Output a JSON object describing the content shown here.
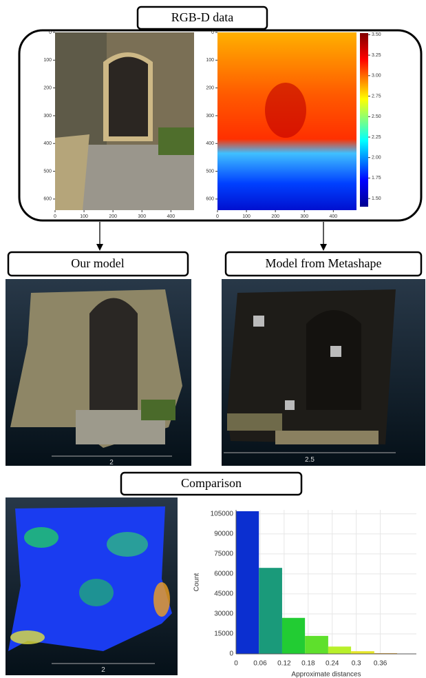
{
  "rgbd": {
    "title": "RGB-D data",
    "rgb_image": {
      "xlim": [
        0,
        480
      ],
      "ylim": [
        0,
        640
      ],
      "xticks": [
        0,
        100,
        200,
        300,
        400
      ],
      "yticks": [
        0,
        100,
        200,
        300,
        400,
        500,
        600
      ]
    },
    "depth_image": {
      "xlim": [
        0,
        480
      ],
      "ylim": [
        0,
        640
      ],
      "xticks": [
        0,
        100,
        200,
        300,
        400
      ],
      "yticks": [
        0,
        100,
        200,
        300,
        400,
        500,
        600
      ],
      "colorbar": {
        "lim": [
          1.4,
          3.52
        ],
        "ticks": [
          {
            "value": 1.5,
            "label": "1.50"
          },
          {
            "value": 1.75,
            "label": "1.75"
          },
          {
            "value": 2.0,
            "label": "2.00"
          },
          {
            "value": 2.25,
            "label": "2.25"
          },
          {
            "value": 2.5,
            "label": "2.50"
          },
          {
            "value": 2.75,
            "label": "2.75"
          },
          {
            "value": 3.0,
            "label": "3.00"
          },
          {
            "value": 3.25,
            "label": "3.25"
          },
          {
            "value": 3.5,
            "label": "3.50"
          }
        ]
      }
    }
  },
  "our_model": {
    "title": "Our model",
    "scale_label": "2"
  },
  "metashape_model": {
    "title": "Model from Metashape",
    "scale_label": "2.5"
  },
  "comparison": {
    "title": "Comparison",
    "scale_label": "2"
  },
  "chart_data": {
    "type": "histogram",
    "xlabel": "Approximate distances",
    "ylabel": "Count",
    "bins": [
      0,
      0.057,
      0.115,
      0.172,
      0.23,
      0.287,
      0.345,
      0.402
    ],
    "values": [
      107000,
      64500,
      27000,
      13500,
      5500,
      2000,
      500
    ],
    "colors": [
      "#0b2fd0",
      "#1a9a7a",
      "#22cc33",
      "#5ee02c",
      "#b8f02a",
      "#e6e62a",
      "#e8a020"
    ],
    "xlim": [
      0,
      0.45
    ],
    "ylim": [
      0,
      108000
    ],
    "xticks": [
      0,
      0.06,
      0.12,
      0.18,
      0.24,
      0.3,
      0.36
    ],
    "yticks": [
      0,
      15000,
      30000,
      45000,
      60000,
      75000,
      90000,
      105000
    ],
    "grid": true
  }
}
